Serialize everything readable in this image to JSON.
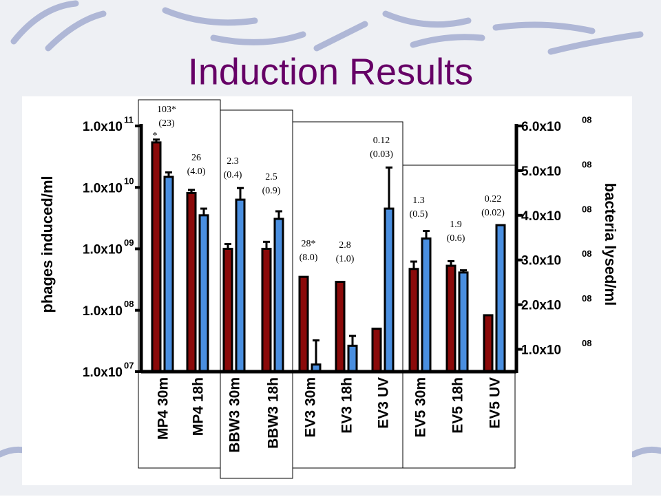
{
  "chart_data": {
    "type": "bar",
    "title": "Induction Results",
    "ylabel": "phages induced/ml",
    "y2label": "bacteria lysed/ml",
    "categories": [
      "MP4 30m",
      "MP4 18h",
      "BBW3 30m",
      "BBW3 18h",
      "EV3 30m",
      "EV3 18h",
      "EV3 UV",
      "EV5 30m",
      "EV5 18h",
      "EV5 UV"
    ],
    "series": [
      {
        "color": "#8b0a0a",
        "axis": "y",
        "values": [
          54000000000,
          8100000000,
          1000000000,
          1000000000,
          350000000,
          290000000,
          50000000,
          470000000,
          530000000,
          83000000
        ],
        "errors": [
          6000000000,
          1000000000,
          200000000,
          300000000,
          0,
          0,
          0,
          150000000,
          100000000,
          0
        ]
      },
      {
        "color": "#4a8fe0",
        "axis": "y2",
        "values": [
          486000000,
          400000000,
          435000000,
          392000000,
          66000000,
          108000000,
          415000000,
          348000000,
          272000000,
          378000000
        ],
        "errors": [
          10000000,
          15000000,
          26000000,
          17000000,
          54000000,
          22000000,
          92000000,
          17000000,
          5000000,
          0
        ]
      }
    ],
    "y_scale": "log",
    "ylim": [
      10000000,
      100000000000
    ],
    "yticks": [
      {
        "value": 10000000,
        "label": "1.0x10",
        "exponent": "07"
      },
      {
        "value": 100000000,
        "label": "1.0x10",
        "exponent": "08"
      },
      {
        "value": 1000000000,
        "label": "1.0x10",
        "exponent": "09"
      },
      {
        "value": 10000000000,
        "label": "1.0x10",
        "exponent": "10"
      },
      {
        "value": 100000000000,
        "label": "1.0x10",
        "exponent": "11"
      }
    ],
    "y2lim": [
      50000000,
      600000000
    ],
    "y2ticks": [
      {
        "value": 100000000,
        "label": "1.0x10",
        "exponent": "08"
      },
      {
        "value": 200000000,
        "label": "2.0x10",
        "exponent": "08"
      },
      {
        "value": 300000000,
        "label": "3.0x10",
        "exponent": "08"
      },
      {
        "value": 400000000,
        "label": "4.0x10",
        "exponent": "08"
      },
      {
        "value": 500000000,
        "label": "5.0x10",
        "exponent": "08"
      },
      {
        "value": 600000000,
        "label": "6.0x10",
        "exponent": "08"
      }
    ],
    "annotations": [
      {
        "text": "103*",
        "sub": "(23)"
      },
      {
        "text": "26",
        "sub": "(4.0)"
      },
      {
        "text": "2.3",
        "sub": "(0.4)"
      },
      {
        "text": "2.5",
        "sub": "(0.9)"
      },
      {
        "text": "28*",
        "sub": "(8.0)"
      },
      {
        "text": "2.8",
        "sub": "(1.0)"
      },
      {
        "text": "0.12",
        "sub": "(0.03)"
      },
      {
        "text": "1.3",
        "sub": "(0.5)"
      },
      {
        "text": "1.9",
        "sub": "(0.6)"
      },
      {
        "text": "0.22",
        "sub": "(0.02)"
      }
    ],
    "marker_note": "*"
  }
}
